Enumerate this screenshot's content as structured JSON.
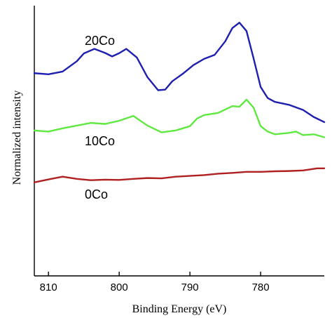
{
  "chart_data": {
    "type": "line",
    "title": "",
    "xlabel": "Binding Energy (eV)",
    "ylabel": "Normalized intensity",
    "xlim": [
      812,
      771
    ],
    "x_reversed": true,
    "ylim": [
      0,
      100
    ],
    "y_ticks_shown": false,
    "grid": false,
    "x_ticks": [
      810,
      800,
      790,
      780
    ],
    "series": [
      {
        "name": "20Co",
        "color": "#1f1fb0",
        "label": "20Co",
        "points": [
          [
            812,
            75
          ],
          [
            810,
            74.6
          ],
          [
            808,
            75.6
          ],
          [
            806,
            79.4
          ],
          [
            805,
            82.3
          ],
          [
            803.5,
            84
          ],
          [
            802,
            82.5
          ],
          [
            801,
            81.2
          ],
          [
            800,
            82.4
          ],
          [
            799,
            84
          ],
          [
            797.5,
            80.8
          ],
          [
            796,
            73.5
          ],
          [
            794.5,
            68.7
          ],
          [
            793.5,
            68.9
          ],
          [
            792.5,
            72
          ],
          [
            791,
            74.8
          ],
          [
            789.5,
            78
          ],
          [
            788,
            80.3
          ],
          [
            786.5,
            81.8
          ],
          [
            785,
            86.8
          ],
          [
            784,
            91.7
          ],
          [
            783,
            93.7
          ],
          [
            782,
            90.6
          ],
          [
            781,
            80.5
          ],
          [
            780,
            69.9
          ],
          [
            779,
            65.8
          ],
          [
            778,
            64.4
          ],
          [
            776,
            63.3
          ],
          [
            774,
            61.4
          ],
          [
            772.5,
            58.8
          ],
          [
            771,
            56.9
          ]
        ]
      },
      {
        "name": "10Co",
        "color": "#5fe840",
        "label": "10Co",
        "points": [
          [
            812,
            53.8
          ],
          [
            810,
            53.4
          ],
          [
            808,
            54.6
          ],
          [
            806,
            55.6
          ],
          [
            804,
            56.6
          ],
          [
            802,
            56.2
          ],
          [
            800,
            57.4
          ],
          [
            798,
            59.2
          ],
          [
            796,
            55.6
          ],
          [
            794,
            53.1
          ],
          [
            792,
            53.8
          ],
          [
            790,
            55.4
          ],
          [
            789,
            58.2
          ],
          [
            788,
            59.5
          ],
          [
            786,
            60.3
          ],
          [
            784,
            62.8
          ],
          [
            783,
            62.6
          ],
          [
            782,
            65.2
          ],
          [
            781,
            62.3
          ],
          [
            780,
            55.4
          ],
          [
            779,
            53.4
          ],
          [
            778,
            52.4
          ],
          [
            776,
            52.9
          ],
          [
            775,
            53.4
          ],
          [
            774,
            52.1
          ],
          [
            772.5,
            52.4
          ],
          [
            771,
            51.3
          ]
        ]
      },
      {
        "name": "0Co",
        "color": "#b02020",
        "label": "0Co",
        "points": [
          [
            812,
            34.6
          ],
          [
            810,
            35.7
          ],
          [
            808,
            36.7
          ],
          [
            806,
            35.9
          ],
          [
            804,
            35.4
          ],
          [
            802,
            35.6
          ],
          [
            800,
            35.5
          ],
          [
            798,
            35.9
          ],
          [
            796,
            36.2
          ],
          [
            794,
            36.1
          ],
          [
            792,
            36.7
          ],
          [
            790,
            37
          ],
          [
            788,
            37.3
          ],
          [
            786,
            37.8
          ],
          [
            784,
            38.1
          ],
          [
            782,
            38.5
          ],
          [
            780,
            38.5
          ],
          [
            778,
            38.7
          ],
          [
            776,
            38.8
          ],
          [
            774,
            39
          ],
          [
            772,
            39.8
          ],
          [
            771,
            39.8
          ]
        ]
      }
    ]
  }
}
